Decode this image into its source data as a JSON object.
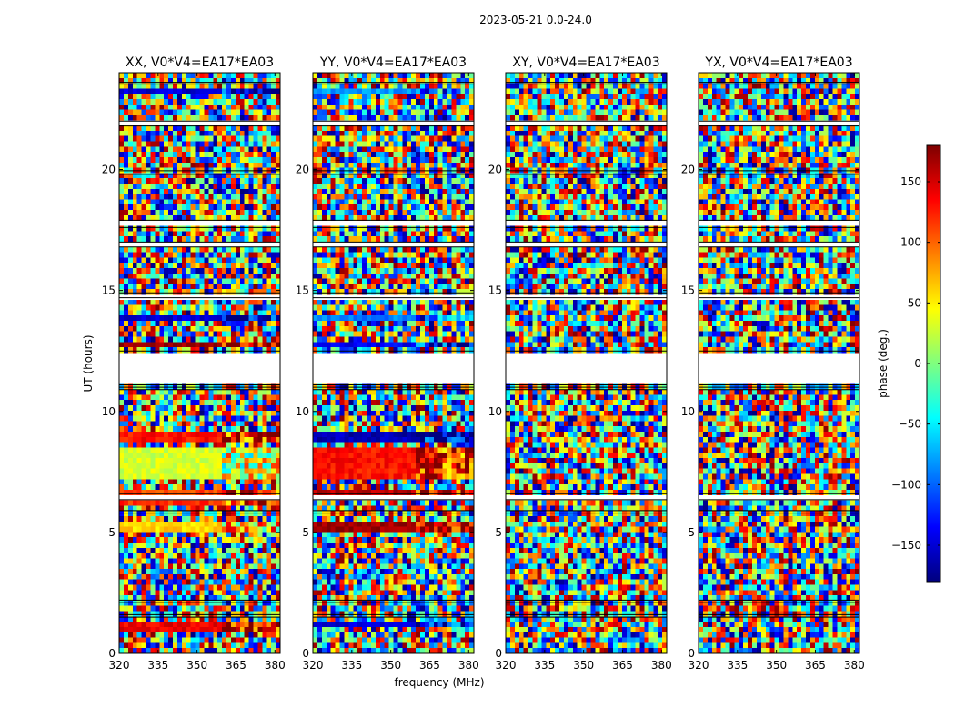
{
  "chart_data": {
    "type": "heatmap",
    "suptitle": "2023-05-21 0.0-24.0",
    "xlabel": "frequency (MHz)",
    "ylabel": "UT (hours)",
    "xlim": [
      320,
      382
    ],
    "ylim": [
      0,
      24
    ],
    "xticks": [
      320,
      335,
      350,
      365,
      380
    ],
    "yticks": [
      0,
      5,
      10,
      15,
      20
    ],
    "colorbar": {
      "label": "phase (deg.)",
      "range": [
        -180,
        180
      ],
      "ticks": [
        150,
        100,
        50,
        0,
        -50,
        -100,
        -150
      ],
      "tick_labels": [
        "150",
        "100",
        "50",
        "0",
        "−50",
        "−100",
        "−150"
      ],
      "colormap": "jet"
    },
    "baseline": "V0*V4=EA17*EA03",
    "panels": [
      {
        "title": "XX, V0*V4=EA17*EA03",
        "mean_phase_bands": [
          {
            "t0": 0.9,
            "t1": 1.3,
            "phase": 140
          },
          {
            "t0": 3.5,
            "t1": 3.6,
            "phase": 150
          },
          {
            "t0": 5.1,
            "t1": 5.5,
            "phase": 60
          },
          {
            "t0": 6.2,
            "t1": 6.35,
            "phase": 120
          },
          {
            "t0": 6.6,
            "t1": 6.8,
            "phase": 110
          },
          {
            "t0": 7.1,
            "t1": 8.5,
            "phase": 30
          },
          {
            "t0": 8.8,
            "t1": 9.2,
            "phase": 130
          },
          {
            "t0": 12.6,
            "t1": 12.9,
            "phase": 170
          },
          {
            "t0": 13.7,
            "t1": 13.9,
            "phase": -150
          },
          {
            "t0": 23.2,
            "t1": 23.35,
            "phase": -150
          }
        ]
      },
      {
        "title": "YY, V0*V4=EA17*EA03",
        "mean_phase_bands": [
          {
            "t0": 1.0,
            "t1": 1.3,
            "phase": -150
          },
          {
            "t0": 3.5,
            "t1": 3.6,
            "phase": -150
          },
          {
            "t0": 5.1,
            "t1": 5.5,
            "phase": 170
          },
          {
            "t0": 6.6,
            "t1": 6.8,
            "phase": 160
          },
          {
            "t0": 7.1,
            "t1": 8.5,
            "phase": 130
          },
          {
            "t0": 8.8,
            "t1": 9.2,
            "phase": -160
          },
          {
            "t0": 12.6,
            "t1": 12.9,
            "phase": -140
          },
          {
            "t0": 13.7,
            "t1": 13.9,
            "phase": -90
          },
          {
            "t0": 23.2,
            "t1": 23.35,
            "phase": -80
          }
        ]
      },
      {
        "title": "XY, V0*V4=EA17*EA03",
        "mean_phase_bands": []
      },
      {
        "title": "YX, V0*V4=EA17*EA03",
        "mean_phase_bands": []
      }
    ],
    "no_data_intervals_hours": [
      [
        1.5,
        1.6
      ],
      [
        2.1,
        2.2
      ],
      [
        5.8,
        5.9
      ],
      [
        6.35,
        6.6
      ],
      [
        10.9,
        11.0
      ],
      [
        11.1,
        12.5
      ],
      [
        14.7,
        14.9
      ],
      [
        16.8,
        17.0
      ],
      [
        17.6,
        17.9
      ],
      [
        19.8,
        19.95
      ],
      [
        21.8,
        22.0
      ],
      [
        23.5,
        23.6
      ]
    ]
  }
}
